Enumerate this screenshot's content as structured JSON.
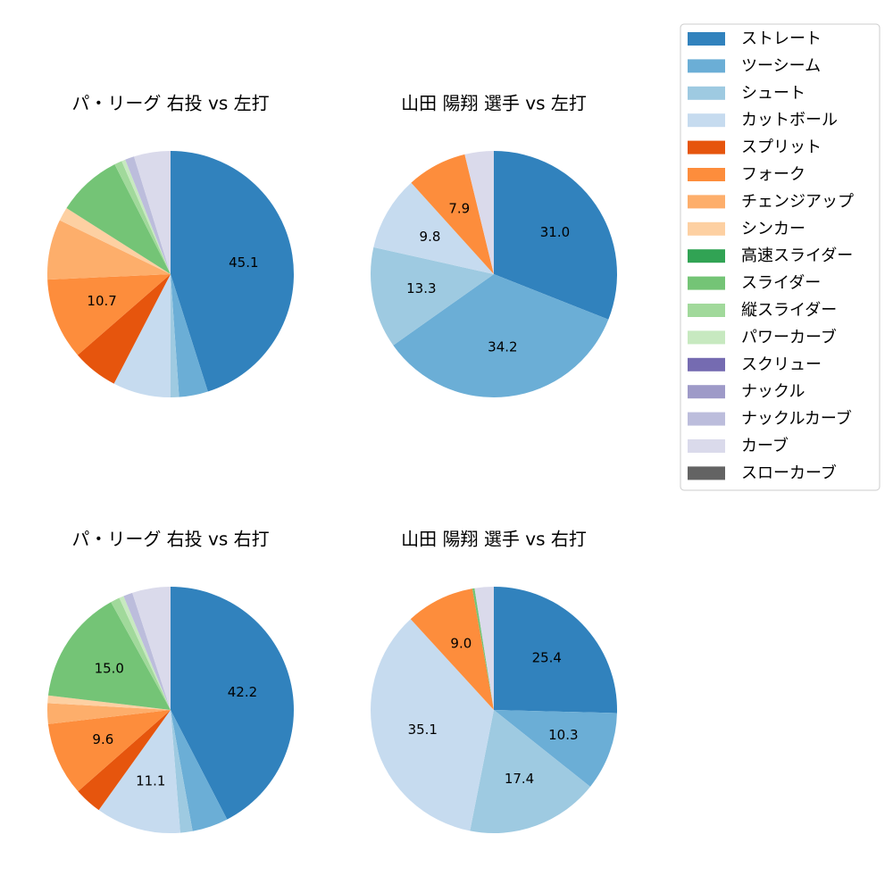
{
  "chart_data": [
    {
      "type": "pie",
      "title": "パ・リーグ 右投 vs 左打",
      "categories": [
        "ストレート",
        "ツーシーム",
        "シュート",
        "カットボール",
        "スプリット",
        "フォーク",
        "チェンジアップ",
        "シンカー",
        "スライダー",
        "縦スライダー",
        "パワーカーブ",
        "ナックルカーブ",
        "カーブ"
      ],
      "values": [
        45.1,
        3.8,
        1.1,
        7.6,
        6.0,
        10.7,
        7.9,
        1.8,
        8.5,
        1.0,
        0.5,
        1.2,
        4.8
      ],
      "value_labels": [
        "45.1",
        null,
        null,
        null,
        null,
        "10.7",
        null,
        null,
        null,
        null,
        null,
        null,
        null
      ],
      "colors": [
        "#3182bd",
        "#6baed6",
        "#9ecae1",
        "#c6dbef",
        "#e6550d",
        "#fd8d3c",
        "#fdae6b",
        "#fdd0a2",
        "#74c476",
        "#a1d99b",
        "#c7e9c0",
        "#bcbddc",
        "#dadaeb"
      ]
    },
    {
      "type": "pie",
      "title": "山田 陽翔 選手 vs 左打",
      "categories": [
        "ストレート",
        "ツーシーム",
        "シュート",
        "カットボール",
        "フォーク",
        "カーブ"
      ],
      "values": [
        31.0,
        34.2,
        13.3,
        9.8,
        7.9,
        3.8
      ],
      "value_labels": [
        "31.0",
        "34.2",
        "13.3",
        "9.8",
        "7.9",
        null
      ],
      "colors": [
        "#3182bd",
        "#6baed6",
        "#9ecae1",
        "#c6dbef",
        "#fd8d3c",
        "#dadaeb"
      ]
    },
    {
      "type": "pie",
      "title": "パ・リーグ 右投 vs 右打",
      "categories": [
        "ストレート",
        "ツーシーム",
        "シュート",
        "カットボール",
        "スプリット",
        "フォーク",
        "チェンジアップ",
        "シンカー",
        "スライダー",
        "縦スライダー",
        "パワーカーブ",
        "ナックルカーブ",
        "カーブ"
      ],
      "values": [
        42.2,
        4.7,
        1.6,
        11.1,
        3.6,
        9.6,
        2.7,
        1.0,
        15.0,
        1.2,
        0.6,
        1.2,
        5.0
      ],
      "value_labels": [
        "42.2",
        null,
        null,
        "11.1",
        null,
        "9.6",
        null,
        null,
        "15.0",
        null,
        null,
        null,
        null
      ],
      "colors": [
        "#3182bd",
        "#6baed6",
        "#9ecae1",
        "#c6dbef",
        "#e6550d",
        "#fd8d3c",
        "#fdae6b",
        "#fdd0a2",
        "#74c476",
        "#a1d99b",
        "#c7e9c0",
        "#bcbddc",
        "#dadaeb"
      ]
    },
    {
      "type": "pie",
      "title": "山田 陽翔 選手 vs 右打",
      "categories": [
        "ストレート",
        "ツーシーム",
        "シュート",
        "カットボール",
        "フォーク",
        "スライダー",
        "カーブ"
      ],
      "values": [
        25.4,
        10.3,
        17.4,
        35.1,
        9.0,
        0.3,
        2.5
      ],
      "value_labels": [
        "25.4",
        "10.3",
        "17.4",
        "35.1",
        "9.0",
        null,
        null
      ],
      "colors": [
        "#3182bd",
        "#6baed6",
        "#9ecae1",
        "#c6dbef",
        "#fd8d3c",
        "#74c476",
        "#dadaeb"
      ]
    }
  ],
  "legend": {
    "labels": [
      "ストレート",
      "ツーシーム",
      "シュート",
      "カットボール",
      "スプリット",
      "フォーク",
      "チェンジアップ",
      "シンカー",
      "高速スライダー",
      "スライダー",
      "縦スライダー",
      "パワーカーブ",
      "スクリュー",
      "ナックル",
      "ナックルカーブ",
      "カーブ",
      "スローカーブ"
    ],
    "colors": [
      "#3182bd",
      "#6baed6",
      "#9ecae1",
      "#c6dbef",
      "#e6550d",
      "#fd8d3c",
      "#fdae6b",
      "#fdd0a2",
      "#31a354",
      "#74c476",
      "#a1d99b",
      "#c7e9c0",
      "#756bb1",
      "#9e9ac8",
      "#bcbddc",
      "#dadaeb",
      "#636363"
    ]
  }
}
